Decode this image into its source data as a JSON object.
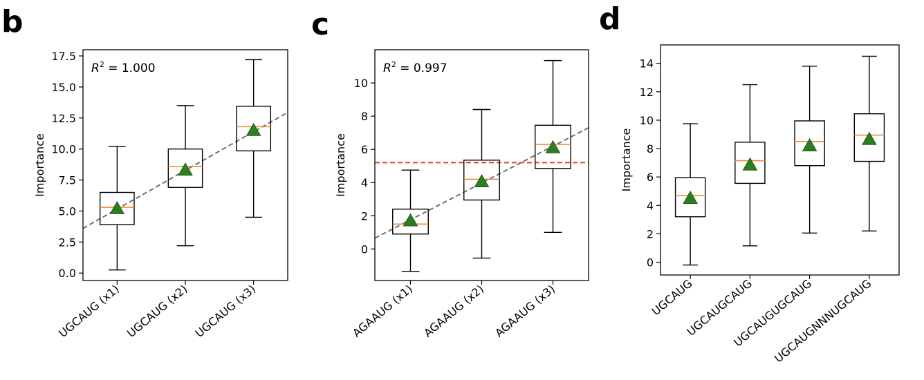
{
  "chart_data": [
    {
      "type": "box",
      "panel_label": "b",
      "ylabel": "Importance",
      "ylim": [
        -0.6,
        18.0
      ],
      "yticks": [
        0.0,
        2.5,
        5.0,
        7.5,
        10.0,
        12.5,
        15.0,
        17.5
      ],
      "ytick_labels": [
        "0.0",
        "2.5",
        "5.0",
        "7.5",
        "10.0",
        "12.5",
        "15.0",
        "17.5"
      ],
      "xlim": [
        0.5,
        3.5
      ],
      "categories": [
        "UGCAUG (x1)",
        "UGCAUG (x2)",
        "UGCAUG (x3)"
      ],
      "boxes": [
        {
          "whislo": 0.25,
          "q1": 3.9,
          "med": 5.3,
          "q3": 6.5,
          "whishi": 10.2,
          "mean": 5.2
        },
        {
          "whislo": 2.2,
          "q1": 6.9,
          "med": 8.6,
          "q3": 10.0,
          "whishi": 13.5,
          "mean": 8.3
        },
        {
          "whislo": 4.5,
          "q1": 9.85,
          "med": 11.8,
          "q3": 13.45,
          "whishi": 17.2,
          "mean": 11.5
        }
      ],
      "fit_line": {
        "x": [
          0.5,
          3.5
        ],
        "y": [
          3.6,
          12.95
        ]
      },
      "annotation": {
        "r2_symbol": "R",
        "r2_sup": "2",
        "r2_text": " = 1.000"
      }
    },
    {
      "type": "box",
      "panel_label": "c",
      "ylabel": "Importance",
      "ylim": [
        -1.9,
        12.0
      ],
      "yticks": [
        0,
        2,
        4,
        6,
        8,
        10
      ],
      "ytick_labels": [
        "0",
        "2",
        "4",
        "6",
        "8",
        "10"
      ],
      "xlim": [
        0.5,
        3.5
      ],
      "categories": [
        "AGAAUG (x1)",
        "AGAAUG (x2)",
        "AGAAUG (x3)"
      ],
      "boxes": [
        {
          "whislo": -1.35,
          "q1": 0.9,
          "med": 1.5,
          "q3": 2.4,
          "whishi": 4.75,
          "mean": 1.7
        },
        {
          "whislo": -0.55,
          "q1": 2.95,
          "med": 4.2,
          "q3": 5.35,
          "whishi": 8.4,
          "mean": 4.05
        },
        {
          "whislo": 1.0,
          "q1": 4.85,
          "med": 6.3,
          "q3": 7.45,
          "whishi": 11.35,
          "mean": 6.1
        }
      ],
      "fit_line": {
        "x": [
          0.5,
          3.5
        ],
        "y": [
          0.65,
          7.3
        ]
      },
      "hline": {
        "y": 5.2
      },
      "annotation": {
        "r2_symbol": "R",
        "r2_sup": "2",
        "r2_text": " = 0.997"
      }
    },
    {
      "type": "box",
      "panel_label": "d",
      "ylabel": "Importance",
      "ylim": [
        -0.9,
        15.3
      ],
      "yticks": [
        0,
        2,
        4,
        6,
        8,
        10,
        12,
        14
      ],
      "ytick_labels": [
        "0",
        "2",
        "4",
        "6",
        "8",
        "10",
        "12",
        "14"
      ],
      "xlim": [
        0.5,
        4.5
      ],
      "categories": [
        "UGCAUG",
        "UGCAUGCAUG",
        "UGCAUGUGCAUG",
        "UGCAUGNNNUGCAUG"
      ],
      "boxes": [
        {
          "whislo": -0.2,
          "q1": 3.2,
          "med": 4.7,
          "q3": 5.95,
          "whishi": 9.75,
          "mean": 4.5
        },
        {
          "whislo": 1.15,
          "q1": 5.55,
          "med": 7.15,
          "q3": 8.45,
          "whishi": 12.5,
          "mean": 6.85
        },
        {
          "whislo": 2.05,
          "q1": 6.8,
          "med": 8.5,
          "q3": 9.95,
          "whishi": 13.8,
          "mean": 8.2
        },
        {
          "whislo": 2.2,
          "q1": 7.1,
          "med": 8.95,
          "q3": 10.45,
          "whishi": 14.5,
          "mean": 8.65
        }
      ]
    }
  ],
  "colors": {
    "box": "#000000",
    "median": "#f08a3c",
    "mean_fill": "#2e7d20",
    "mean_edge": "#1f5c16",
    "fit_line": "#707070",
    "hline": "#d9412b"
  }
}
